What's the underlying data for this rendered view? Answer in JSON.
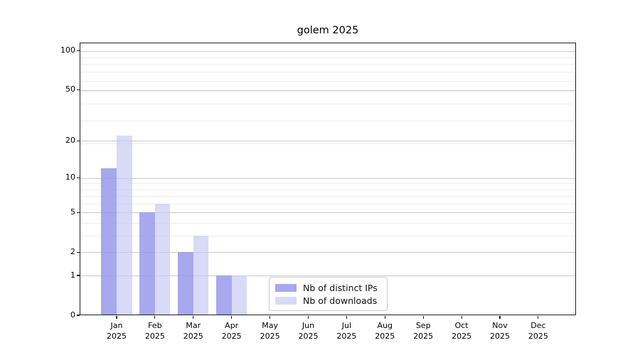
{
  "title": "golem 2025",
  "chart_data": {
    "type": "bar",
    "title": "golem 2025",
    "categories": [
      "Jan",
      "Feb",
      "Mar",
      "Apr",
      "May",
      "Jun",
      "Jul",
      "Aug",
      "Sep",
      "Oct",
      "Nov",
      "Dec"
    ],
    "year_label": "2025",
    "series": [
      {
        "name": "Nb of distinct IPs",
        "color": "#a8a8ee",
        "fill": "rgba(146,146,234,0.8)",
        "values": [
          12,
          5,
          2,
          1,
          0,
          0,
          0,
          0,
          0,
          0,
          0,
          0
        ]
      },
      {
        "name": "Nb of downloads",
        "color": "#d9d9f8",
        "fill": "rgba(197,197,244,0.65)",
        "values": [
          22,
          6,
          3,
          1,
          0,
          0,
          0,
          0,
          0,
          0,
          0,
          0
        ]
      }
    ],
    "y_ticks": [
      0,
      1,
      2,
      5,
      10,
      20,
      50,
      100
    ],
    "y_minor_ticks": [
      3,
      4,
      6,
      7,
      8,
      9,
      19,
      29,
      39,
      49,
      59,
      69,
      79,
      89,
      99
    ],
    "scale": "log(1+x)",
    "ylim": [
      0,
      100
    ],
    "grid": true,
    "legend_position": "lower center",
    "colors": {
      "grid_major": "#c9c9c9",
      "grid_minor": "#ededed",
      "spine": "#1f1f1f",
      "text": "#000000"
    }
  }
}
